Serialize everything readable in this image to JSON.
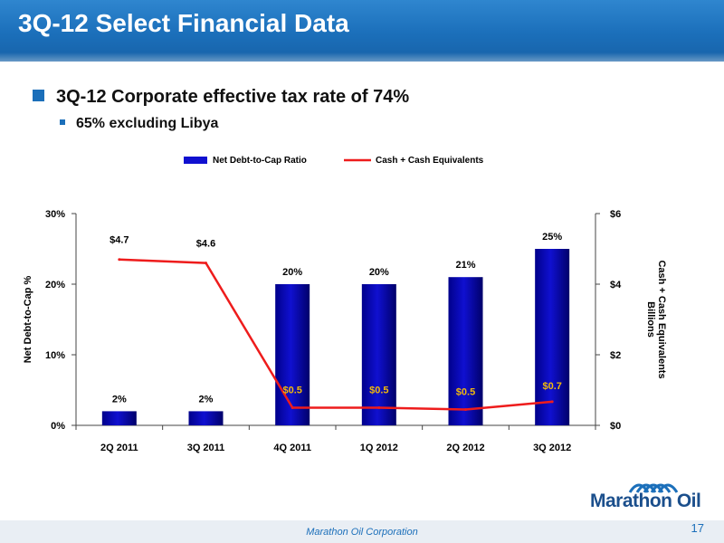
{
  "header": {
    "title": "3Q-12 Select Financial Data"
  },
  "bullets": {
    "main": "3Q-12 Corporate effective tax rate of 74%",
    "sub": "65% excluding Libya"
  },
  "footer": {
    "company": "Marathon Oil Corporation",
    "page_number": "17"
  },
  "logo": {
    "text": "Marathon Oil"
  },
  "colors": {
    "brand": "#1b6fba",
    "bar": "#1010d0",
    "line": "#ee1c1c"
  },
  "chart_data": {
    "type": "bar",
    "categories": [
      "2Q 2011",
      "3Q 2011",
      "4Q 2011",
      "1Q 2012",
      "2Q 2012",
      "3Q 2012"
    ],
    "series": [
      {
        "name": "Net Debt-to-Cap Ratio",
        "type": "bar",
        "axis": "left",
        "values": [
          2,
          2,
          20,
          20,
          21,
          25
        ],
        "labels": [
          "2%",
          "2%",
          "20%",
          "20%",
          "21%",
          "25%"
        ]
      },
      {
        "name": "Cash + Cash Equivalents",
        "type": "line",
        "axis": "right",
        "values": [
          4.7,
          4.6,
          0.5,
          0.5,
          0.45,
          0.67
        ],
        "labels": [
          "$4.7",
          "$4.6",
          "$0.5",
          "$0.5",
          "$0.5",
          "$0.7"
        ]
      }
    ],
    "y_left": {
      "label": "Net Debt-to-Cap %",
      "lim": [
        0,
        30
      ],
      "ticks": [
        "0%",
        "10%",
        "20%",
        "30%"
      ],
      "tick_values": [
        0,
        10,
        20,
        30
      ]
    },
    "y_right": {
      "label": "Cash + Cash Equivalents",
      "sublabel": "Billions",
      "lim": [
        0,
        6
      ],
      "ticks": [
        "$0",
        "$2",
        "$4",
        "$6"
      ],
      "tick_values": [
        0,
        2,
        4,
        6
      ]
    },
    "legend": "top-center",
    "grid": false
  }
}
